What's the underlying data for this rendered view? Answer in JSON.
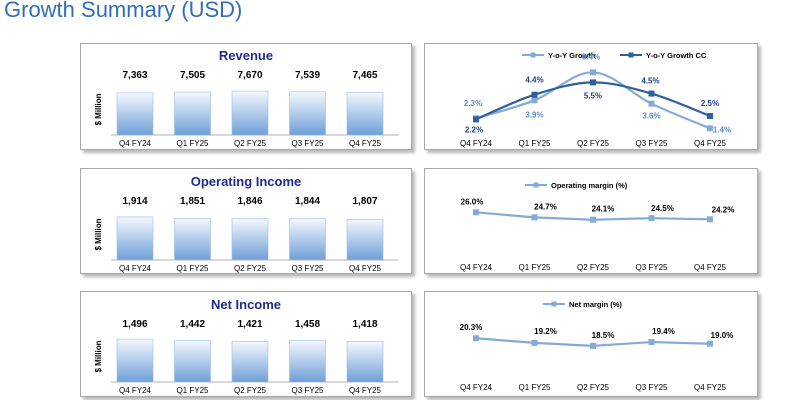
{
  "page": {
    "title": "Growth Summary (USD)"
  },
  "colors": {
    "bar_top": "#f4f8fd",
    "bar_bottom": "#6f9fd8",
    "bar_edge": "#9ebde3",
    "title": "#1f2d8a",
    "line_light": "#86aad8",
    "line_dark": "#2f5f9f",
    "label_dark": "#1f3f8f",
    "label_light": "#5b8fd0"
  },
  "chart_data": [
    {
      "id": "revenue",
      "type": "bar",
      "title": "Revenue",
      "ylabel": "$ Million",
      "categories": [
        "Q4 FY24",
        "Q1 FY25",
        "Q2 FY25",
        "Q3 FY25",
        "Q4 FY25"
      ],
      "values": [
        7363,
        7505,
        7670,
        7539,
        7465
      ],
      "value_labels": [
        "7,363",
        "7,505",
        "7,670",
        "7,539",
        "7,465"
      ],
      "ylim": [
        0,
        11000
      ]
    },
    {
      "id": "yoy",
      "type": "line",
      "title": "",
      "categories": [
        "Q4 FY24",
        "Q1 FY25",
        "Q2 FY25",
        "Q3 FY25",
        "Q4 FY25"
      ],
      "legend": "top",
      "series": [
        {
          "name": "Y-o-Y Growth",
          "values": [
            2.3,
            3.9,
            6.4,
            3.6,
            1.4
          ],
          "labels": [
            "2.3%",
            "3.9%",
            "6.4%",
            "3.6%",
            "1.4%"
          ]
        },
        {
          "name": "Y-o-Y Growth CC",
          "values": [
            2.2,
            4.4,
            5.5,
            4.5,
            2.5
          ],
          "labels": [
            "2.2%",
            "4.4%",
            "5.5%",
            "4.5%",
            "2.5%"
          ]
        }
      ],
      "ylim": [
        0,
        7.5
      ]
    },
    {
      "id": "operating_income",
      "type": "bar",
      "title": "Operating Income",
      "ylabel": "$ Million",
      "categories": [
        "Q4 FY24",
        "Q1 FY25",
        "Q2 FY25",
        "Q3 FY25",
        "Q4 FY25"
      ],
      "values": [
        1914,
        1851,
        1846,
        1844,
        1807
      ],
      "value_labels": [
        "1,914",
        "1,851",
        "1,846",
        "1,844",
        "1,807"
      ],
      "ylim": [
        0,
        2800
      ]
    },
    {
      "id": "operating_margin",
      "type": "line",
      "title": "",
      "categories": [
        "Q4 FY24",
        "Q1 FY25",
        "Q2 FY25",
        "Q3 FY25",
        "Q4 FY25"
      ],
      "legend": "top",
      "series": [
        {
          "name": "Operating margin (%)",
          "values": [
            26.0,
            24.7,
            24.1,
            24.5,
            24.2
          ],
          "labels": [
            "26.0%",
            "24.7%",
            "24.1%",
            "24.5%",
            "24.2%"
          ]
        }
      ],
      "ylim": [
        14,
        32
      ]
    },
    {
      "id": "net_income",
      "type": "bar",
      "title": "Net Income",
      "ylabel": "$ Million",
      "categories": [
        "Q4 FY24",
        "Q1 FY25",
        "Q2 FY25",
        "Q3 FY25",
        "Q4 FY25"
      ],
      "values": [
        1496,
        1442,
        1421,
        1458,
        1418
      ],
      "value_labels": [
        "1,496",
        "1,442",
        "1,421",
        "1,458",
        "1,418"
      ],
      "ylim": [
        0,
        2200
      ]
    },
    {
      "id": "net_margin",
      "type": "line",
      "title": "",
      "categories": [
        "Q4 FY24",
        "Q1 FY25",
        "Q2 FY25",
        "Q3 FY25",
        "Q4 FY25"
      ],
      "legend": "top",
      "series": [
        {
          "name": "Net margin (%)",
          "values": [
            20.3,
            19.2,
            18.5,
            19.4,
            19.0
          ],
          "labels": [
            "20.3%",
            "19.2%",
            "18.5%",
            "19.4%",
            "19.0%"
          ]
        }
      ],
      "ylim": [
        10,
        26
      ]
    }
  ]
}
